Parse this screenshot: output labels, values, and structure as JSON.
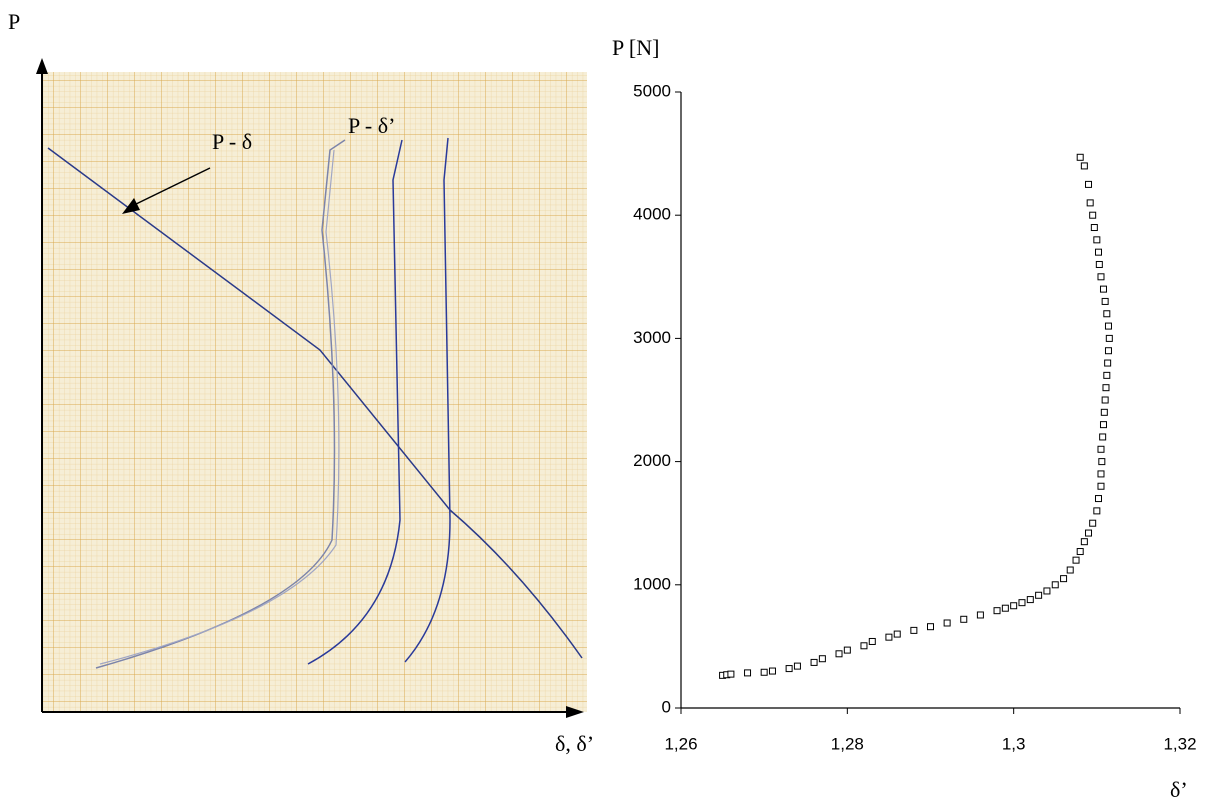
{
  "photo": {
    "y_axis_label": "P",
    "curve_label_1": "P - δ",
    "curve_label_2": "P - δ’",
    "x_axis_label": "δ, δ’"
  },
  "chart_data": {
    "type": "scatter",
    "x_label": "δ’",
    "y_label": "P [N]",
    "x": [
      1.265,
      1.2655,
      1.266,
      1.268,
      1.27,
      1.271,
      1.273,
      1.274,
      1.276,
      1.277,
      1.279,
      1.28,
      1.282,
      1.283,
      1.285,
      1.286,
      1.288,
      1.29,
      1.292,
      1.294,
      1.296,
      1.298,
      1.299,
      1.3,
      1.301,
      1.302,
      1.303,
      1.304,
      1.305,
      1.306,
      1.3068,
      1.3075,
      1.308,
      1.3085,
      1.309,
      1.3095,
      1.31,
      1.3102,
      1.3105,
      1.3105,
      1.3106,
      1.3105,
      1.3107,
      1.3108,
      1.3109,
      1.311,
      1.3111,
      1.3112,
      1.3113,
      1.3114,
      1.3115,
      1.3114,
      1.3112,
      1.311,
      1.3108,
      1.3105,
      1.3103,
      1.3102,
      1.31,
      1.3097,
      1.3095,
      1.3092,
      1.309,
      1.3085,
      1.308
    ],
    "values": [
      265,
      270,
      275,
      285,
      290,
      300,
      320,
      340,
      370,
      400,
      440,
      470,
      505,
      540,
      575,
      600,
      630,
      660,
      690,
      720,
      755,
      790,
      810,
      830,
      855,
      880,
      915,
      950,
      1000,
      1050,
      1120,
      1200,
      1270,
      1350,
      1420,
      1500,
      1600,
      1700,
      1800,
      1900,
      2000,
      2100,
      2200,
      2300,
      2400,
      2500,
      2600,
      2700,
      2800,
      2900,
      3000,
      3100,
      3200,
      3300,
      3400,
      3500,
      3600,
      3700,
      3800,
      3900,
      4000,
      4100,
      4250,
      4400,
      4470
    ],
    "color": "#000000",
    "xlim": [
      1.26,
      1.32
    ],
    "xticks": [
      {
        "value": 1.26,
        "label": "1,26"
      },
      {
        "value": 1.28,
        "label": "1,28"
      },
      {
        "value": 1.3,
        "label": "1,3"
      },
      {
        "value": 1.32,
        "label": "1,32"
      }
    ],
    "ylim": [
      0,
      5000
    ],
    "yticks": [
      0,
      1000,
      2000,
      3000,
      4000,
      5000
    ]
  }
}
